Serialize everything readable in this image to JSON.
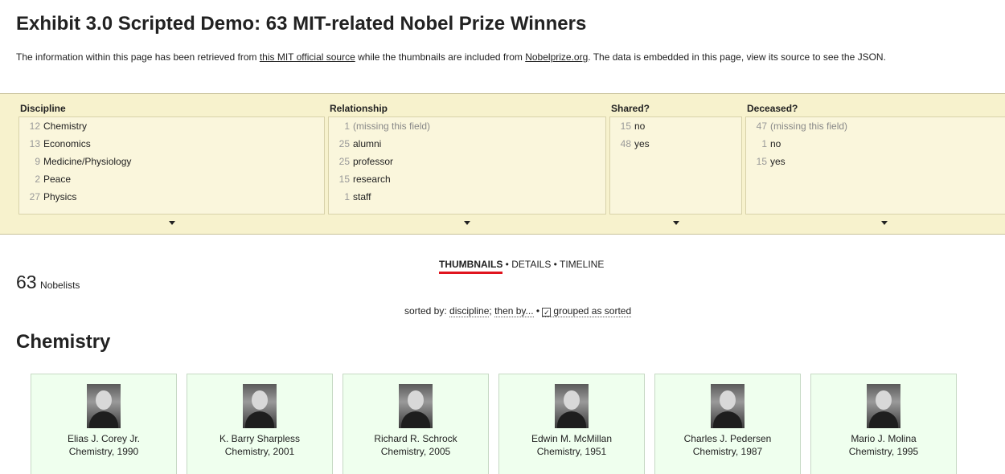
{
  "page": {
    "title": "Exhibit 3.0 Scripted Demo: 63 MIT-related Nobel Prize Winners",
    "intro": {
      "part1": "The information within this page has been retrieved from ",
      "link1": "this MIT official source",
      "part2": " while the thumbnails are included from ",
      "link2": "Nobelprize.org",
      "part3": ". The data is embedded in this page, view its source to see the JSON."
    }
  },
  "facets": {
    "discipline": {
      "title": "Discipline",
      "items": [
        {
          "count": "12",
          "label": "Chemistry"
        },
        {
          "count": "13",
          "label": "Economics"
        },
        {
          "count": "9",
          "label": "Medicine/Physiology"
        },
        {
          "count": "2",
          "label": "Peace"
        },
        {
          "count": "27",
          "label": "Physics"
        }
      ]
    },
    "relationship": {
      "title": "Relationship",
      "items": [
        {
          "count": "1",
          "label": "(missing this field)"
        },
        {
          "count": "25",
          "label": "alumni"
        },
        {
          "count": "25",
          "label": "professor"
        },
        {
          "count": "15",
          "label": "research"
        },
        {
          "count": "1",
          "label": "staff"
        }
      ]
    },
    "shared": {
      "title": "Shared?",
      "items": [
        {
          "count": "15",
          "label": "no"
        },
        {
          "count": "48",
          "label": "yes"
        }
      ]
    },
    "deceased": {
      "title": "Deceased?",
      "items": [
        {
          "count": "47",
          "label": "(missing this field)"
        },
        {
          "count": "1",
          "label": "no"
        },
        {
          "count": "15",
          "label": "yes"
        }
      ]
    }
  },
  "results": {
    "count": "63",
    "label": "Nobelists"
  },
  "views": {
    "thumbnails": "THUMBNAILS",
    "sep1": " • ",
    "details": "DETAILS",
    "sep2": " • ",
    "timeline": "TIMELINE",
    "active": "thumbnails"
  },
  "sort": {
    "prefix": "sorted by: ",
    "field": "discipline",
    "sep": "; ",
    "then": "then by...",
    "bullet": " • ",
    "check_mark": "✓",
    "grouped": "grouped as sorted"
  },
  "group": {
    "heading": "Chemistry"
  },
  "cards": [
    {
      "name": "Elias J. Corey Jr.",
      "sub": "Chemistry, 1990"
    },
    {
      "name": "K. Barry Sharpless",
      "sub": "Chemistry, 2001"
    },
    {
      "name": "Richard R. Schrock",
      "sub": "Chemistry, 2005"
    },
    {
      "name": "Edwin M. McMillan",
      "sub": "Chemistry, 1951"
    },
    {
      "name": "Charles J. Pedersen",
      "sub": "Chemistry, 1987"
    },
    {
      "name": "Mario J. Molina",
      "sub": "Chemistry, 1995"
    }
  ]
}
